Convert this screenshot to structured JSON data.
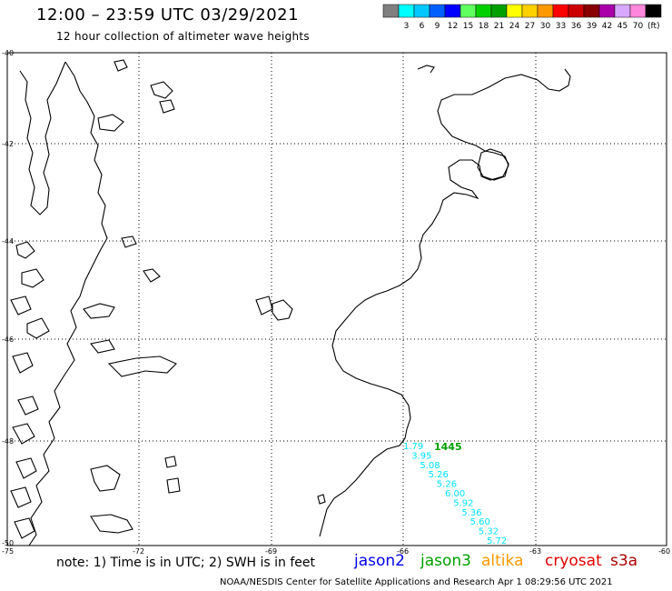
{
  "header": {
    "title": "12:00 – 23:59 UTC 03/29/2021",
    "subtitle": "12 hour collection of altimeter wave heights"
  },
  "legend": {
    "unit": "(ft)",
    "swatches": [
      {
        "color": "#808080",
        "label": ""
      },
      {
        "color": "#00ffff",
        "label": "3"
      },
      {
        "color": "#00c8ff",
        "label": "6"
      },
      {
        "color": "#0060ff",
        "label": "9"
      },
      {
        "color": "#0000ff",
        "label": "12"
      },
      {
        "color": "#60ff60",
        "label": "15"
      },
      {
        "color": "#00d000",
        "label": "18"
      },
      {
        "color": "#00a000",
        "label": "21"
      },
      {
        "color": "#ffff00",
        "label": "24"
      },
      {
        "color": "#ffd000",
        "label": "27"
      },
      {
        "color": "#ff9900",
        "label": "30"
      },
      {
        "color": "#ff0000",
        "label": "33"
      },
      {
        "color": "#cc0000",
        "label": "36"
      },
      {
        "color": "#880000",
        "label": "39"
      },
      {
        "color": "#aa00aa",
        "label": "42"
      },
      {
        "color": "#d8a8ff",
        "label": "45"
      },
      {
        "color": "#ff88dd",
        "label": "70"
      },
      {
        "color": "#000000",
        "label": ""
      }
    ]
  },
  "axes": {
    "lat_labels": [
      "-40",
      "-42",
      "-44",
      "-46",
      "-48",
      "-50"
    ],
    "lon_labels": [
      "-75",
      "-72",
      "-69",
      "-66",
      "-63",
      "-60"
    ]
  },
  "track": {
    "time_label": "1445",
    "time_color": "#00a000",
    "point_color": "#00e0ff",
    "values": [
      "1.79",
      "3.95",
      "5.08",
      "5.26",
      "5.26",
      "6.00",
      "5.92",
      "5.36",
      "5.60",
      "5.32",
      "5.72"
    ]
  },
  "footer": {
    "note": "note: 1) Time is in UTC; 2) SWH is in feet",
    "missions": [
      {
        "name": "jason2",
        "color": "#0000ee"
      },
      {
        "name": "jason3",
        "color": "#00a000"
      },
      {
        "name": "altika",
        "color": "#ff9900"
      },
      {
        "name": "cryosat",
        "color": "#e00000"
      },
      {
        "name": "s3a",
        "color": "#aa0000"
      }
    ],
    "credit": "NOAA/NESDIS Center for Satellite Applications and Research   Apr  1 08:29:56 UTC 2021"
  }
}
